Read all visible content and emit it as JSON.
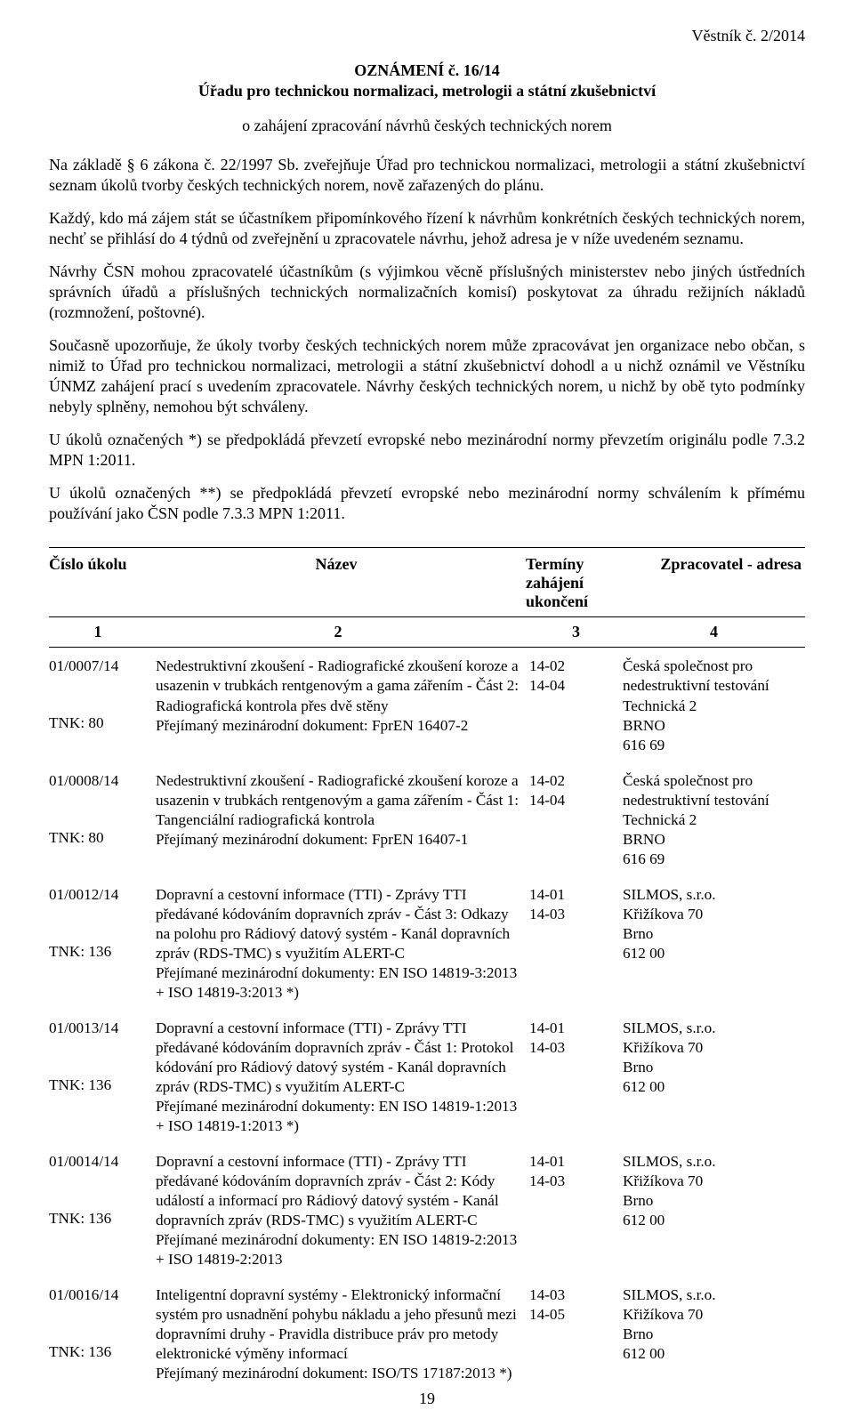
{
  "header": {
    "journal": "Věstník č. 2/2014"
  },
  "title": {
    "announcement": "OZNÁMENÍ č. 16/14",
    "office": "Úřadu pro technickou normalizaci, metrologii a státní zkušebnictví",
    "subtitle": "o zahájení zpracování návrhů českých technických norem"
  },
  "basis": "Na základě § 6 zákona č. 22/1997 Sb. zveřejňuje Úřad pro technickou normalizaci, metrologii a státní zkušebnictví seznam úkolů tvorby českých technických norem, nově zařazených do plánu.",
  "paragraphs": [
    "Každý, kdo má zájem stát se účastníkem připomínkového řízení k návrhům konkrétních českých technických norem, nechť se přihlásí do 4 týdnů od zveřejnění u zpracovatele návrhu, jehož adresa je v níže uvedeném seznamu.",
    "Návrhy ČSN mohou zpracovatelé účastníkům (s výjimkou věcně příslušných ministerstev nebo jiných ústředních správních úřadů a příslušných technických normalizačních komisí) poskytovat za úhradu režijních nákladů (rozmnožení, poštovné).",
    "Současně upozorňuje, že úkoly tvorby českých technických norem může zpracovávat jen organizace nebo občan, s nimiž to Úřad pro technickou normalizaci, metrologii a státní zkušebnictví dohodl a u nichž oznámil ve Věstníku ÚNMZ zahájení prací s uvedením zpracovatele. Návrhy českých technických norem, u nichž by obě tyto podmínky nebyly splněny, nemohou být schváleny.",
    "U úkolů označených *) se předpokládá převzetí evropské nebo mezinárodní normy převzetím originálu podle 7.3.2 MPN 1:2011.",
    "U úkolů označených **) se předpokládá převzetí evropské nebo mezinárodní normy schválením k přímému používání jako ČSN podle 7.3.3 MPN 1:2011."
  ],
  "table": {
    "headers": {
      "col1": "Číslo úkolu",
      "col2": "Název",
      "col3a": "Termíny",
      "col3b": "zahájení",
      "col3c": "ukončení",
      "col4": "Zpracovatel - adresa"
    },
    "col_numbers": {
      "c1": "1",
      "c2": "2",
      "c3": "3",
      "c4": "4"
    },
    "rows": [
      {
        "id": "01/0007/14",
        "tnk": "TNK: 80",
        "name": "Nedestruktivní zkoušení - Radiografické zkoušení koroze a usazenin v trubkách rentgenovým a gama zářením - Část 2: Radiografická kontrola přes dvě stěny",
        "doc": "Přejímaný mezinárodní dokument: FprEN 16407-2",
        "start": "14-02",
        "end": "14-04",
        "addr1": "Česká společnost pro",
        "addr2": "nedestruktivní testování",
        "addr3": "Technická 2",
        "addr4": "BRNO",
        "addr5": "616 69"
      },
      {
        "id": "01/0008/14",
        "tnk": "TNK: 80",
        "name": "Nedestruktivní zkoušení - Radiografické zkoušení koroze a usazenin v trubkách rentgenovým a gama zářením - Část 1: Tangenciální radiografická kontrola",
        "doc": "Přejímaný mezinárodní dokument: FprEN 16407-1",
        "start": "14-02",
        "end": "14-04",
        "addr1": "Česká společnost pro",
        "addr2": "nedestruktivní testování",
        "addr3": "Technická 2",
        "addr4": "BRNO",
        "addr5": "616 69"
      },
      {
        "id": "01/0012/14",
        "tnk": "TNK: 136",
        "name": "Dopravní a cestovní informace (TTI) - Zprávy TTI předávané kódováním dopravních zpráv - Část 3: Odkazy na polohu pro Rádiový datový systém - Kanál dopravních zpráv (RDS-TMC) s využitím ALERT-C",
        "doc": "Přejímané mezinárodní dokumenty: EN ISO 14819-3:2013 + ISO 14819-3:2013 *)",
        "start": "14-01",
        "end": "14-03",
        "addr1": "SILMOS,  s.r.o.",
        "addr2": "Křižíkova 70",
        "addr3": "Brno",
        "addr4": "612 00",
        "addr5": ""
      },
      {
        "id": "01/0013/14",
        "tnk": "TNK: 136",
        "name": "Dopravní a cestovní informace (TTI) - Zprávy TTI předávané kódováním dopravních zpráv - Část 1: Protokol kódování pro Rádiový datový systém - Kanál dopravních zpráv (RDS-TMC) s využitím ALERT-C",
        "doc": "Přejímané mezinárodní dokumenty: EN ISO 14819-1:2013 + ISO 14819-1:2013 *)",
        "start": "14-01",
        "end": "14-03",
        "addr1": "SILMOS,  s.r.o.",
        "addr2": "Křižíkova 70",
        "addr3": "Brno",
        "addr4": "612 00",
        "addr5": ""
      },
      {
        "id": "01/0014/14",
        "tnk": "TNK: 136",
        "name": "Dopravní a cestovní informace (TTI) - Zprávy TTI předávané kódováním dopravních zpráv - Část 2: Kódy událostí a informací pro Rádiový datový systém - Kanál dopravních zpráv (RDS-TMC) s využitím ALERT-C",
        "doc": "Přejímané mezinárodní dokumenty: EN ISO 14819-2:2013 + ISO 14819-2:2013",
        "start": "14-01",
        "end": "14-03",
        "addr1": "SILMOS,  s.r.o.",
        "addr2": "Křižíkova 70",
        "addr3": "Brno",
        "addr4": "612 00",
        "addr5": ""
      },
      {
        "id": "01/0016/14",
        "tnk": "TNK: 136",
        "name": "Inteligentní dopravní systémy - Elektronický informační systém pro usnadnění pohybu nákladu a jeho přesunů mezi dopravními druhy - Pravidla distribuce práv pro metody elektronické výměny informací",
        "doc": "Přejímaný mezinárodní dokument: ISO/TS 17187:2013 *)",
        "start": "14-03",
        "end": "14-05",
        "addr1": "SILMOS,  s.r.o.",
        "addr2": "Křižíkova 70",
        "addr3": "Brno",
        "addr4": "612 00",
        "addr5": ""
      }
    ]
  },
  "page_number": "19"
}
